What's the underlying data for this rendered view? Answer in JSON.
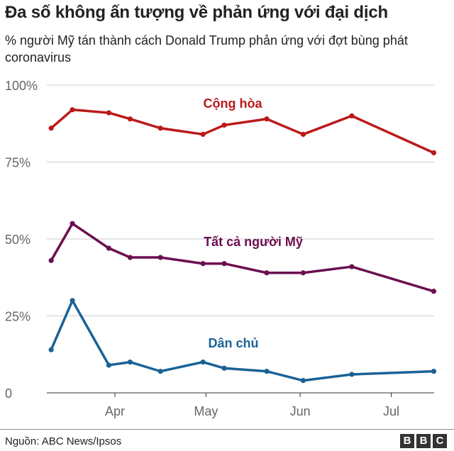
{
  "title": "Đa số không ấn tượng về phản ứng với đại dịch",
  "subtitle": "% người Mỹ tán thành cách Donald Trump phản ứng với đợt bùng phát coronavirus",
  "source": "Nguồn: ABC News/Ipsos",
  "logo": [
    "B",
    "B",
    "C"
  ],
  "chart_data": {
    "type": "line",
    "title": "Đa số không ấn tượng về phản ứng với đại dịch",
    "subtitle": "% người Mỹ tán thành cách Donald Trump phản ứng với đợt bùng phát coronavirus",
    "x_unit": "date (2020)",
    "x_ticks": [
      {
        "label": "Apr",
        "date": "2020-04-01"
      },
      {
        "label": "May",
        "date": "2020-05-01"
      },
      {
        "label": "Jun",
        "date": "2020-06-01"
      },
      {
        "label": "Jul",
        "date": "2020-07-01"
      }
    ],
    "y_ticks": [
      {
        "label": "100%",
        "value": 100
      },
      {
        "label": "75%",
        "value": 75
      },
      {
        "label": "50%",
        "value": 50
      },
      {
        "label": "25%",
        "value": 25
      },
      {
        "label": "0",
        "value": 0
      }
    ],
    "ylim": [
      0,
      100
    ],
    "xlim": [
      "2020-03-07",
      "2020-07-17"
    ],
    "grid": true,
    "legend": "inline labels",
    "series": [
      {
        "name": "Cộng hòa",
        "color": "#bb1919",
        "x": [
          "2020-03-11",
          "2020-03-18",
          "2020-03-30",
          "2020-04-06",
          "2020-04-16",
          "2020-04-30",
          "2020-05-07",
          "2020-05-21",
          "2020-06-02",
          "2020-06-18",
          "2020-07-15"
        ],
        "values": [
          86,
          92,
          91,
          89,
          86,
          84,
          87,
          89,
          84,
          90,
          78
        ]
      },
      {
        "name": "Tất cả người Mỹ",
        "color": "#6b0f4f",
        "x": [
          "2020-03-11",
          "2020-03-18",
          "2020-03-30",
          "2020-04-06",
          "2020-04-16",
          "2020-04-30",
          "2020-05-07",
          "2020-05-21",
          "2020-06-02",
          "2020-06-18",
          "2020-07-15"
        ],
        "values": [
          43,
          55,
          47,
          44,
          44,
          42,
          42,
          39,
          39,
          41,
          33
        ]
      },
      {
        "name": "Dân chủ",
        "color": "#1a6296",
        "x": [
          "2020-03-11",
          "2020-03-18",
          "2020-03-30",
          "2020-04-06",
          "2020-04-16",
          "2020-04-30",
          "2020-05-07",
          "2020-05-21",
          "2020-06-02",
          "2020-06-18",
          "2020-07-15"
        ],
        "values": [
          14,
          30,
          9,
          10,
          7,
          10,
          8,
          7,
          4,
          6,
          7
        ]
      }
    ]
  }
}
